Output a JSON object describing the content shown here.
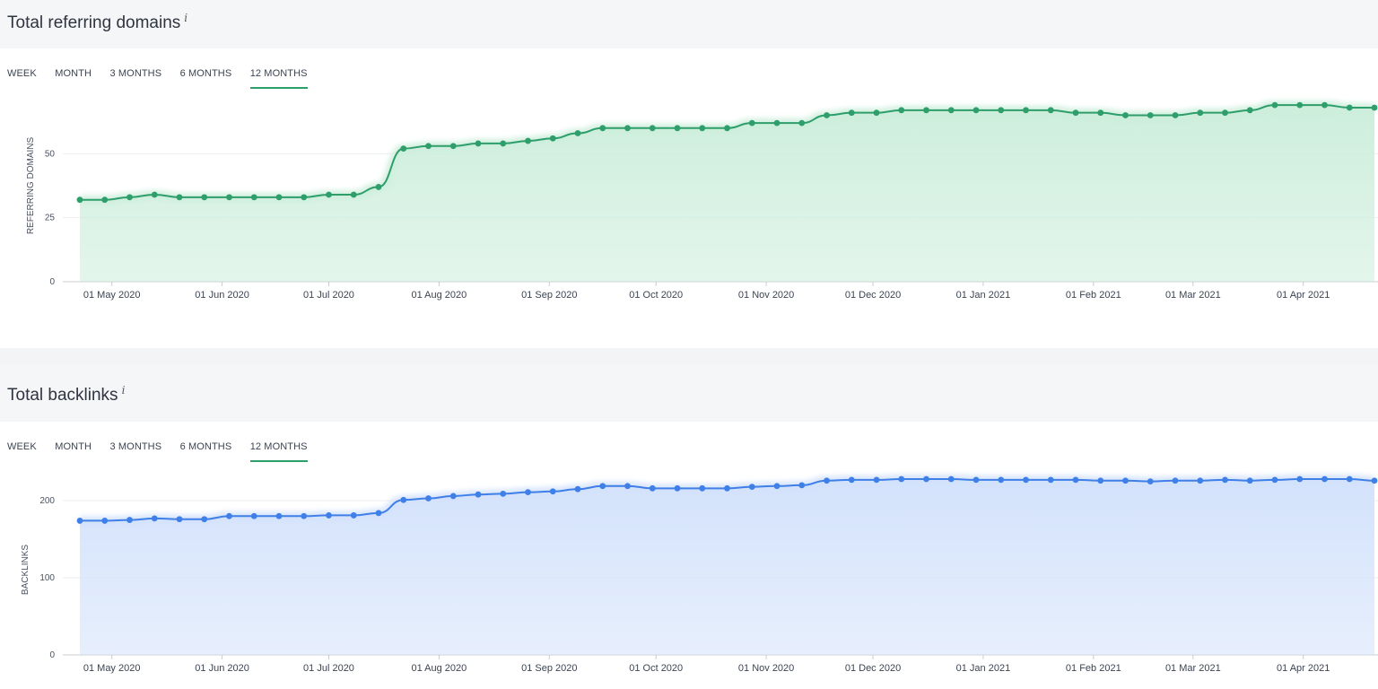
{
  "panels": {
    "domains": {
      "title": "Total referring domains",
      "info": "i",
      "tabs": [
        "WEEK",
        "MONTH",
        "3 MONTHS",
        "6 MONTHS",
        "12 MONTHS"
      ],
      "active_tab": "12 MONTHS"
    },
    "backlinks": {
      "title": "Total backlinks",
      "info": "i",
      "tabs": [
        "WEEK",
        "MONTH",
        "3 MONTHS",
        "6 MONTHS",
        "12 MONTHS"
      ],
      "active_tab": "12 MONTHS"
    }
  },
  "chart_data": [
    {
      "type": "area",
      "ylabel": "REFERRING DOMAINS",
      "yticks": [
        0,
        25,
        50
      ],
      "ylim": [
        0,
        75
      ],
      "xticks": [
        "01 May 2020",
        "01 Jun 2020",
        "01 Jul 2020",
        "01 Aug 2020",
        "01 Sep 2020",
        "01 Oct 2020",
        "01 Nov 2020",
        "01 Dec 2020",
        "01 Jan 2021",
        "01 Feb 2021",
        "01 Mar 2021",
        "01 Apr 2021"
      ],
      "color": "#2e9e6b",
      "fill": "#cdeedc",
      "x": [
        "2020-04-22",
        "2020-04-29",
        "2020-05-06",
        "2020-05-13",
        "2020-05-20",
        "2020-05-27",
        "2020-06-03",
        "2020-06-10",
        "2020-06-17",
        "2020-06-24",
        "2020-07-01",
        "2020-07-08",
        "2020-07-15",
        "2020-07-22",
        "2020-07-29",
        "2020-08-05",
        "2020-08-12",
        "2020-08-19",
        "2020-08-26",
        "2020-09-02",
        "2020-09-09",
        "2020-09-16",
        "2020-09-23",
        "2020-09-30",
        "2020-10-07",
        "2020-10-14",
        "2020-10-21",
        "2020-10-28",
        "2020-11-04",
        "2020-11-11",
        "2020-11-18",
        "2020-11-25",
        "2020-12-02",
        "2020-12-09",
        "2020-12-16",
        "2020-12-23",
        "2020-12-30",
        "2021-01-06",
        "2021-01-13",
        "2021-01-20",
        "2021-01-27",
        "2021-02-03",
        "2021-02-10",
        "2021-02-17",
        "2021-02-24",
        "2021-03-03",
        "2021-03-10",
        "2021-03-17",
        "2021-03-24",
        "2021-03-31",
        "2021-04-07",
        "2021-04-14",
        "2021-04-21"
      ],
      "values": [
        32,
        32,
        33,
        34,
        33,
        33,
        33,
        33,
        33,
        33,
        34,
        34,
        37,
        52,
        53,
        53,
        54,
        54,
        55,
        56,
        58,
        60,
        60,
        60,
        60,
        60,
        60,
        62,
        62,
        62,
        65,
        66,
        66,
        67,
        67,
        67,
        67,
        67,
        67,
        67,
        66,
        66,
        65,
        65,
        65,
        66,
        66,
        67,
        69,
        69,
        69,
        68,
        68
      ]
    },
    {
      "type": "area",
      "ylabel": "BACKLINKS",
      "yticks": [
        0,
        100,
        200
      ],
      "ylim": [
        0,
        235
      ],
      "xticks": [
        "01 May 2020",
        "01 Jun 2020",
        "01 Jul 2020",
        "01 Aug 2020",
        "01 Sep 2020",
        "01 Oct 2020",
        "01 Nov 2020",
        "01 Dec 2020",
        "01 Jan 2021",
        "01 Feb 2021",
        "01 Mar 2021",
        "01 Apr 2021"
      ],
      "color": "#3f7fe8",
      "fill": "#d3e2fb",
      "x": [
        "2020-04-22",
        "2020-04-29",
        "2020-05-06",
        "2020-05-13",
        "2020-05-20",
        "2020-05-27",
        "2020-06-03",
        "2020-06-10",
        "2020-06-17",
        "2020-06-24",
        "2020-07-01",
        "2020-07-08",
        "2020-07-15",
        "2020-07-22",
        "2020-07-29",
        "2020-08-05",
        "2020-08-12",
        "2020-08-19",
        "2020-08-26",
        "2020-09-02",
        "2020-09-09",
        "2020-09-16",
        "2020-09-23",
        "2020-09-30",
        "2020-10-07",
        "2020-10-14",
        "2020-10-21",
        "2020-10-28",
        "2020-11-04",
        "2020-11-11",
        "2020-11-18",
        "2020-11-25",
        "2020-12-02",
        "2020-12-09",
        "2020-12-16",
        "2020-12-23",
        "2020-12-30",
        "2021-01-06",
        "2021-01-13",
        "2021-01-20",
        "2021-01-27",
        "2021-02-03",
        "2021-02-10",
        "2021-02-17",
        "2021-02-24",
        "2021-03-03",
        "2021-03-10",
        "2021-03-17",
        "2021-03-24",
        "2021-03-31",
        "2021-04-07",
        "2021-04-14",
        "2021-04-21"
      ],
      "values": [
        174,
        174,
        175,
        177,
        176,
        176,
        180,
        180,
        180,
        180,
        181,
        181,
        184,
        201,
        203,
        206,
        208,
        209,
        211,
        212,
        215,
        219,
        219,
        216,
        216,
        216,
        216,
        218,
        219,
        220,
        226,
        227,
        227,
        228,
        228,
        228,
        227,
        227,
        227,
        227,
        227,
        226,
        226,
        225,
        226,
        226,
        227,
        226,
        227,
        228,
        228,
        228,
        226
      ]
    }
  ]
}
